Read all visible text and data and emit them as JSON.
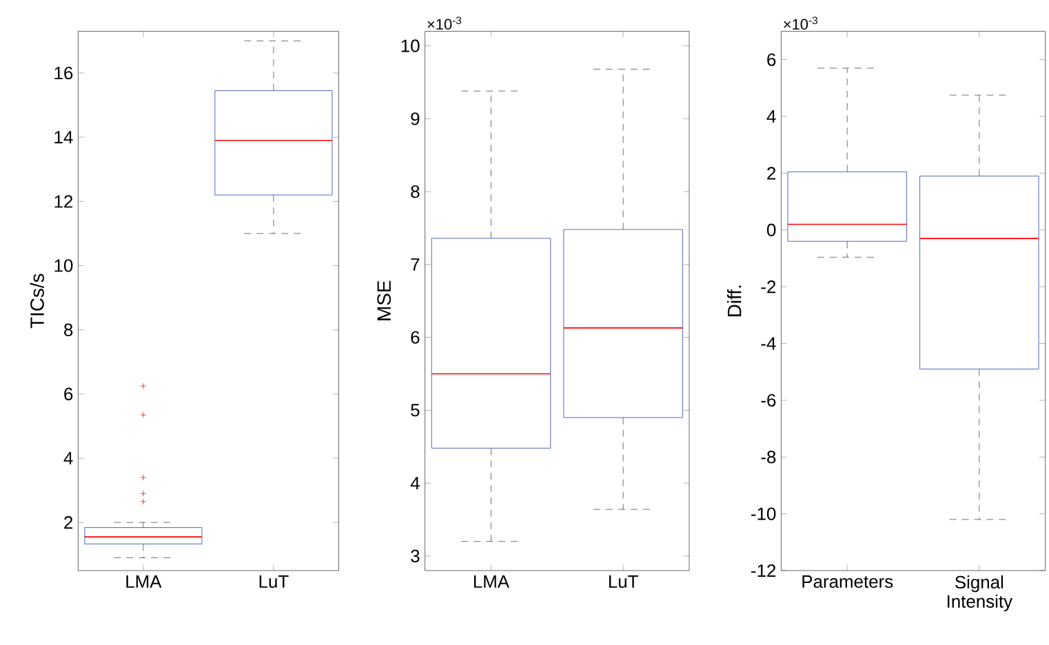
{
  "chart_data": [
    {
      "type": "box",
      "ylabel": "TICs/s",
      "categories": [
        "LMA",
        "LuT"
      ],
      "ylim": [
        0.5,
        17.3
      ],
      "yticks": [
        2,
        4,
        6,
        8,
        10,
        12,
        14,
        16
      ],
      "grid": false,
      "series": [
        {
          "color": "#2b3fb0",
          "boxes": [
            {
              "low": 0.9,
              "q1": 1.33,
              "median": 1.55,
              "q3": 1.84,
              "high": 2.0,
              "outliers": [
                6.25,
                5.35,
                3.4,
                2.9,
                2.65
              ]
            },
            {
              "low": 11.0,
              "q1": 12.2,
              "median": 13.9,
              "q3": 15.45,
              "high": 17.0
            }
          ]
        }
      ]
    },
    {
      "type": "box",
      "ylabel": "MSE",
      "annotations": [
        "×10$^{-3}$"
      ],
      "categories": [
        "LMA",
        "LuT"
      ],
      "ylim": [
        2.8,
        10.2
      ],
      "yticks": [
        3,
        4,
        5,
        6,
        7,
        8,
        9,
        10
      ],
      "grid": false,
      "series": [
        {
          "color": "#2b3fb0",
          "boxes": [
            {
              "low": 3.2,
              "q1": 4.48,
              "median": 5.5,
              "q3": 7.36,
              "high": 9.38
            },
            {
              "low": 3.64,
              "q1": 4.9,
              "median": 6.13,
              "q3": 7.48,
              "high": 9.68
            }
          ]
        }
      ]
    },
    {
      "type": "box",
      "ylabel": "Diff.",
      "annotations": [
        "×10$^{-3}$"
      ],
      "categories": [
        "Parameters",
        "Signal Intensity"
      ],
      "ylim": [
        -12,
        7
      ],
      "yticks": [
        -12,
        -10,
        -8,
        -6,
        -4,
        -2,
        0,
        2,
        4,
        6
      ],
      "grid": false,
      "series": [
        {
          "color": "#2b3fb0",
          "boxes": [
            {
              "low": -0.96,
              "q1": -0.4,
              "median": 0.2,
              "q3": 2.05,
              "high": 5.7
            },
            {
              "low": -10.2,
              "q1": -4.9,
              "median": -0.3,
              "q3": 1.9,
              "high": 4.75
            }
          ]
        }
      ]
    }
  ]
}
